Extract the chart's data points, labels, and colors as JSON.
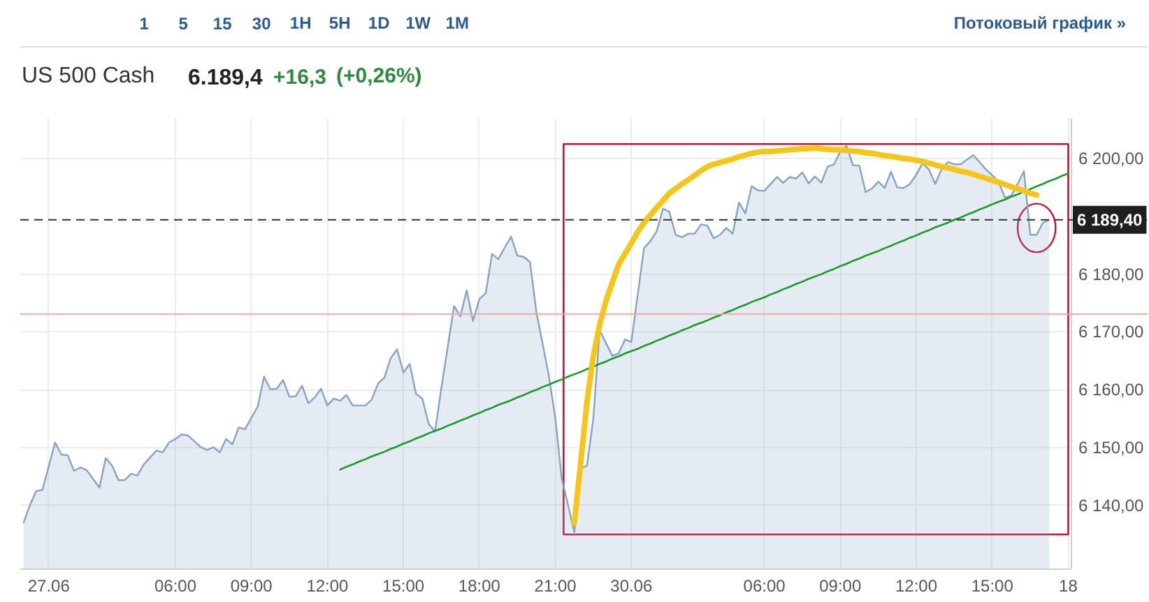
{
  "chart_data": {
    "type": "area",
    "title": "US 500 Cash",
    "annotations": [
      "1",
      "5",
      "15",
      "30",
      "1H",
      "5H",
      "1D",
      "1W",
      "1M",
      "Потоковый график »",
      "6.189,4",
      "+16,3",
      "(+0,26%)"
    ],
    "categories": [
      null,
      null,
      null,
      null,
      "27.06",
      null,
      null,
      null,
      null,
      null,
      null,
      null,
      null,
      null,
      null,
      null,
      null,
      null,
      null,
      null,
      null,
      null,
      null,
      null,
      "06:00",
      null,
      null,
      null,
      null,
      null,
      null,
      null,
      null,
      null,
      null,
      null,
      "09:00",
      null,
      null,
      null,
      null,
      null,
      null,
      null,
      null,
      null,
      null,
      null,
      "12:00",
      null,
      null,
      null,
      null,
      null,
      null,
      null,
      null,
      null,
      null,
      null,
      "15:00",
      null,
      null,
      null,
      null,
      null,
      null,
      null,
      null,
      null,
      null,
      null,
      "18:00",
      null,
      null,
      null,
      null,
      null,
      null,
      null,
      null,
      null,
      null,
      null,
      "21:00",
      null,
      null,
      null,
      null,
      null,
      null,
      null,
      null,
      null,
      null,
      null,
      "30.06",
      null,
      null,
      null,
      null,
      null,
      null,
      null,
      null,
      null,
      null,
      null,
      null,
      null,
      null,
      null,
      null,
      null,
      null,
      null,
      null,
      "06:00",
      null,
      null,
      null,
      null,
      null,
      null,
      null,
      null,
      null,
      null,
      null,
      "09:00",
      null,
      null,
      null,
      null,
      null,
      null,
      null,
      null,
      null,
      null,
      null,
      "12:00",
      null,
      null,
      null,
      null,
      null,
      null,
      null,
      null,
      null,
      null,
      null,
      "15:00",
      null,
      null,
      null,
      null,
      null,
      null,
      null,
      null,
      null,
      null,
      null,
      "18"
    ],
    "ylim": [
      6129,
      6207
    ],
    "yticks": [
      {
        "value": 6140,
        "label": "6 140,00"
      },
      {
        "value": 6150,
        "label": "6 150,00"
      },
      {
        "value": 6160,
        "label": "6 160,00"
      },
      {
        "value": 6170,
        "label": "6 170,00"
      },
      {
        "value": 6180,
        "label": "6 180,00"
      },
      {
        "value": 6200,
        "label": "6 200,00"
      }
    ],
    "grid": true,
    "ref_lines": [
      {
        "axis": "y",
        "value": 6173.1,
        "color": "#f0a8a8"
      },
      {
        "axis": "y",
        "value": 6189.4,
        "label": "6 189,40",
        "color": "#333333",
        "line_style": "dashed"
      }
    ],
    "series": [
      {
        "color": "#86a3c3",
        "values": [
          6137.0,
          6140.0,
          6142.5,
          6142.7,
          6146.8,
          6150.9,
          6148.8,
          6148.7,
          6146.0,
          6146.6,
          6146.1,
          6144.6,
          6143.1,
          6148.2,
          6146.9,
          6144.4,
          6144.4,
          6145.5,
          6145.2,
          6147.1,
          6148.3,
          6149.5,
          6149.2,
          6150.9,
          6151.5,
          6152.3,
          6152.1,
          6151.1,
          6150.1,
          6149.6,
          6150.1,
          6149.2,
          6151.5,
          6150.6,
          6153.5,
          6153.2,
          6155.2,
          6157.1,
          6162.3,
          6160.1,
          6160.2,
          6161.7,
          6158.8,
          6158.9,
          6160.7,
          6157.7,
          6158.7,
          6160.2,
          6157.3,
          6158.5,
          6158.1,
          6159.1,
          6157.3,
          6157.3,
          6157.3,
          6158.3,
          6161.1,
          6162.1,
          6165.5,
          6167.0,
          6163.0,
          6164.5,
          6159.3,
          6158.5,
          6154.1,
          6152.8,
          6160.3,
          6167.4,
          6174.5,
          6172.7,
          6177.2,
          6171.9,
          6175.7,
          6176.7,
          6183.5,
          6182.6,
          6184.6,
          6186.5,
          6183.2,
          6183.0,
          6182.1,
          6173.5,
          6167.9,
          6162.3,
          6155.1,
          6144.7,
          6140.1,
          6135.4,
          6146.4,
          6146.9,
          6155.1,
          6170.3,
          6168.1,
          6165.9,
          6166.3,
          6168.7,
          6168.3,
          6176.4,
          6184.5,
          6185.7,
          6187.4,
          6191.3,
          6190.8,
          6186.8,
          6186.4,
          6187.0,
          6187.0,
          6188.6,
          6188.4,
          6186.2,
          6186.8,
          6188.0,
          6187.0,
          6192.4,
          6190.5,
          6195.2,
          6194.5,
          6194.4,
          6195.6,
          6196.8,
          6195.8,
          6196.8,
          6196.5,
          6197.6,
          6195.7,
          6196.9,
          6195.8,
          6198.6,
          6199.0,
          6201.2,
          6202.2,
          6198.8,
          6198.8,
          6194.2,
          6194.8,
          6196.0,
          6194.9,
          6197.7,
          6195.0,
          6194.9,
          6195.6,
          6197.2,
          6199.2,
          6198.1,
          6195.6,
          6198.2,
          6199.4,
          6199.0,
          6199.0,
          6199.8,
          6200.6,
          6199.4,
          6198.1,
          6197.1,
          6196.0,
          6193.2,
          6193.6,
          6195.6,
          6197.8,
          6186.8,
          6186.8,
          6188.9,
          6189.4,
          null,
          null,
          null
        ]
      },
      {
        "type": "line",
        "color": "#1a9a2a",
        "values": [
          null,
          null,
          null,
          null,
          null,
          null,
          null,
          null,
          null,
          null,
          null,
          null,
          null,
          null,
          null,
          null,
          null,
          null,
          null,
          null,
          null,
          null,
          null,
          null,
          null,
          null,
          null,
          null,
          null,
          null,
          null,
          null,
          null,
          null,
          null,
          null,
          null,
          null,
          null,
          null,
          null,
          null,
          null,
          null,
          null,
          null,
          null,
          null,
          null,
          null,
          6146.2,
          6146.7,
          6147.1,
          6147.6,
          6148.0,
          6148.5,
          6148.9,
          6149.3,
          6149.8,
          6150.2,
          6150.7,
          6151.1,
          6151.6,
          6152.0,
          6152.5,
          6152.9,
          6153.3,
          6153.8,
          6154.2,
          6154.7,
          6155.1,
          6155.6,
          6156.0,
          6156.5,
          6156.9,
          6157.4,
          6157.8,
          6158.2,
          6158.7,
          6159.1,
          6159.6,
          6160.0,
          6160.5,
          6160.9,
          6161.4,
          6161.8,
          6162.3,
          6162.7,
          6163.1,
          6163.6,
          6164.0,
          6164.5,
          6164.9,
          6165.4,
          6165.8,
          6166.3,
          6166.7,
          6167.1,
          6167.6,
          6168.0,
          6168.5,
          6168.9,
          6169.4,
          6169.8,
          6170.3,
          6170.7,
          6171.2,
          6171.6,
          6172.0,
          6172.5,
          6172.9,
          6173.4,
          6173.8,
          6174.3,
          6174.7,
          6175.2,
          6175.6,
          6176.0,
          6176.5,
          6176.9,
          6177.4,
          6177.8,
          6178.3,
          6178.7,
          6179.2,
          6179.6,
          6180.0,
          6180.5,
          6180.9,
          6181.4,
          6181.8,
          6182.3,
          6182.7,
          6183.2,
          6183.6,
          6184.0,
          6184.5,
          6184.9,
          6185.4,
          6185.8,
          6186.3,
          6186.7,
          6187.2,
          6187.6,
          6188.1,
          6188.5,
          6188.9,
          6189.4,
          6189.8,
          6190.3,
          6190.7,
          6191.2,
          6191.6,
          6192.1,
          6192.5,
          6192.9,
          6193.4,
          6193.8,
          6194.3,
          6194.7,
          6195.2,
          6195.6,
          6196.1,
          6196.5,
          6197.0,
          6197.4
        ]
      },
      {
        "type": "line",
        "color": "#f5c518",
        "values": [
          null,
          null,
          null,
          null,
          null,
          null,
          null,
          null,
          null,
          null,
          null,
          null,
          null,
          null,
          null,
          null,
          null,
          null,
          null,
          null,
          null,
          null,
          null,
          null,
          null,
          null,
          null,
          null,
          null,
          null,
          null,
          null,
          null,
          null,
          null,
          null,
          null,
          null,
          null,
          null,
          null,
          null,
          null,
          null,
          null,
          null,
          null,
          null,
          null,
          null,
          null,
          null,
          null,
          null,
          null,
          null,
          null,
          null,
          null,
          null,
          null,
          null,
          null,
          null,
          null,
          null,
          null,
          null,
          null,
          null,
          null,
          null,
          null,
          null,
          null,
          null,
          null,
          null,
          null,
          null,
          null,
          null,
          null,
          null,
          null,
          null,
          null,
          6137.0,
          6147.3,
          6158.0,
          6165.8,
          6171.3,
          6175.4,
          6178.6,
          6181.7,
          6183.5,
          6185.4,
          6187.3,
          6188.9,
          6190.2,
          6191.5,
          6192.7,
          6194.0,
          6194.8,
          6195.6,
          6196.3,
          6197.1,
          6197.9,
          6198.6,
          6199.0,
          6199.3,
          6199.6,
          6199.9,
          6200.3,
          6200.6,
          6200.9,
          6201.1,
          6201.2,
          6201.2,
          6201.3,
          6201.4,
          6201.5,
          6201.6,
          6201.7,
          6201.7,
          6201.8,
          6201.7,
          6201.6,
          6201.5,
          6201.5,
          6201.4,
          6201.3,
          6201.2,
          6201.0,
          6200.9,
          6200.7,
          6200.5,
          6200.4,
          6200.2,
          6200.0,
          6199.9,
          6199.7,
          6199.5,
          6199.2,
          6198.9,
          6198.6,
          6198.4,
          6198.1,
          6197.8,
          6197.6,
          6197.3,
          6196.9,
          6196.6,
          6196.2,
          6195.9,
          6195.5,
          6195.1,
          6194.8,
          6194.4,
          6194.0,
          6193.7,
          null,
          null,
          null,
          null,
          null
        ]
      }
    ]
  }
}
